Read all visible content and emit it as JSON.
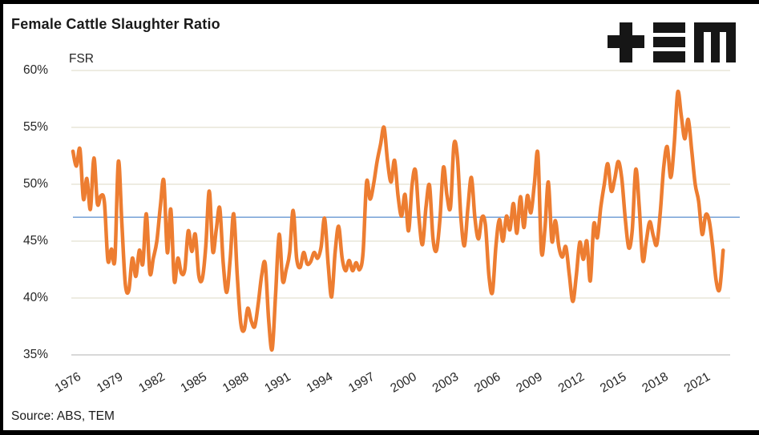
{
  "header": {
    "title": "Female Cattle Slaughter Ratio",
    "logo_name": "TEM logo"
  },
  "footer": {
    "source": "Source: ABS, TEM"
  },
  "chart_data": {
    "type": "line",
    "title": "Female Cattle Slaughter Ratio",
    "ylabel": "FSR",
    "unit": "%",
    "grid": "horizontal",
    "legend": "none",
    "ylim": [
      35,
      60
    ],
    "yticks": [
      60,
      55,
      50,
      45,
      40,
      35
    ],
    "xlim": [
      1976,
      2023
    ],
    "xticks": [
      1976,
      1979,
      1982,
      1985,
      1988,
      1991,
      1994,
      1997,
      2000,
      2003,
      2006,
      2009,
      2012,
      2015,
      2018,
      2021
    ],
    "x_start": 1976.0,
    "x_step_years": 0.25,
    "frequency": "quarterly",
    "reference_line": {
      "value": 47.1,
      "color": "#7FA8D9"
    },
    "series": [
      {
        "name": "FSR",
        "color": "#ED7D31",
        "values": [
          52.9,
          51.6,
          53.1,
          48.7,
          50.5,
          47.8,
          52.3,
          48.3,
          49.0,
          48.4,
          43.3,
          44.3,
          43.4,
          52.0,
          46.5,
          41.2,
          40.7,
          43.5,
          41.9,
          44.2,
          43.0,
          47.4,
          42.2,
          43.5,
          45.0,
          48.0,
          50.3,
          44.0,
          47.8,
          41.5,
          43.5,
          42.2,
          42.5,
          45.9,
          44.1,
          45.6,
          42.0,
          41.7,
          44.5,
          49.4,
          44.1,
          46.0,
          47.9,
          43.0,
          40.5,
          43.5,
          47.4,
          42.0,
          37.8,
          37.2,
          39.1,
          38.0,
          37.5,
          39.5,
          42.0,
          43.0,
          38.0,
          35.5,
          40.5,
          45.6,
          41.5,
          42.5,
          44.0,
          47.7,
          43.5,
          42.7,
          44.0,
          43.0,
          43.2,
          44.0,
          43.5,
          44.5,
          47.0,
          43.0,
          40.1,
          44.0,
          46.3,
          43.5,
          42.4,
          43.3,
          42.4,
          43.1,
          42.5,
          44.0,
          50.2,
          48.7,
          50.0,
          52.0,
          53.5,
          55.0,
          52.0,
          50.2,
          52.1,
          49.0,
          47.2,
          49.1,
          45.9,
          49.9,
          51.2,
          47.0,
          44.7,
          48.0,
          49.9,
          45.2,
          44.2,
          47.0,
          51.5,
          49.0,
          48.0,
          53.5,
          52.3,
          47.0,
          44.6,
          48.0,
          50.6,
          47.0,
          45.2,
          47.1,
          46.4,
          42.0,
          40.5,
          44.6,
          46.9,
          45.0,
          47.2,
          46.0,
          48.3,
          45.7,
          48.9,
          46.2,
          49.0,
          47.5,
          50.0,
          52.7,
          44.1,
          46.0,
          50.2,
          45.0,
          46.8,
          44.5,
          43.6,
          44.5,
          42.0,
          39.7,
          42.0,
          44.9,
          43.4,
          45.0,
          41.5,
          46.5,
          45.3,
          48.0,
          50.0,
          51.8,
          49.4,
          50.5,
          52.0,
          50.5,
          47.0,
          44.4,
          46.0,
          51.3,
          48.0,
          43.3,
          45.0,
          46.7,
          45.5,
          44.7,
          47.5,
          51.5,
          53.3,
          50.6,
          53.5,
          58.1,
          56.1,
          54.0,
          55.7,
          53.0,
          50.0,
          48.5,
          45.6,
          47.3,
          46.8,
          44.5,
          41.5,
          40.8,
          44.2
        ]
      }
    ],
    "colors": {
      "line": "#ED7D31",
      "reference_line": "#7FA8D9",
      "gridline": "#E9E5D8",
      "bottom_axis_line": "#CCCCCC",
      "text": "#262626",
      "title": "#1A1A1A",
      "logo": "#161616",
      "background": "#FFFFFF",
      "frame_border": "#000000"
    }
  }
}
